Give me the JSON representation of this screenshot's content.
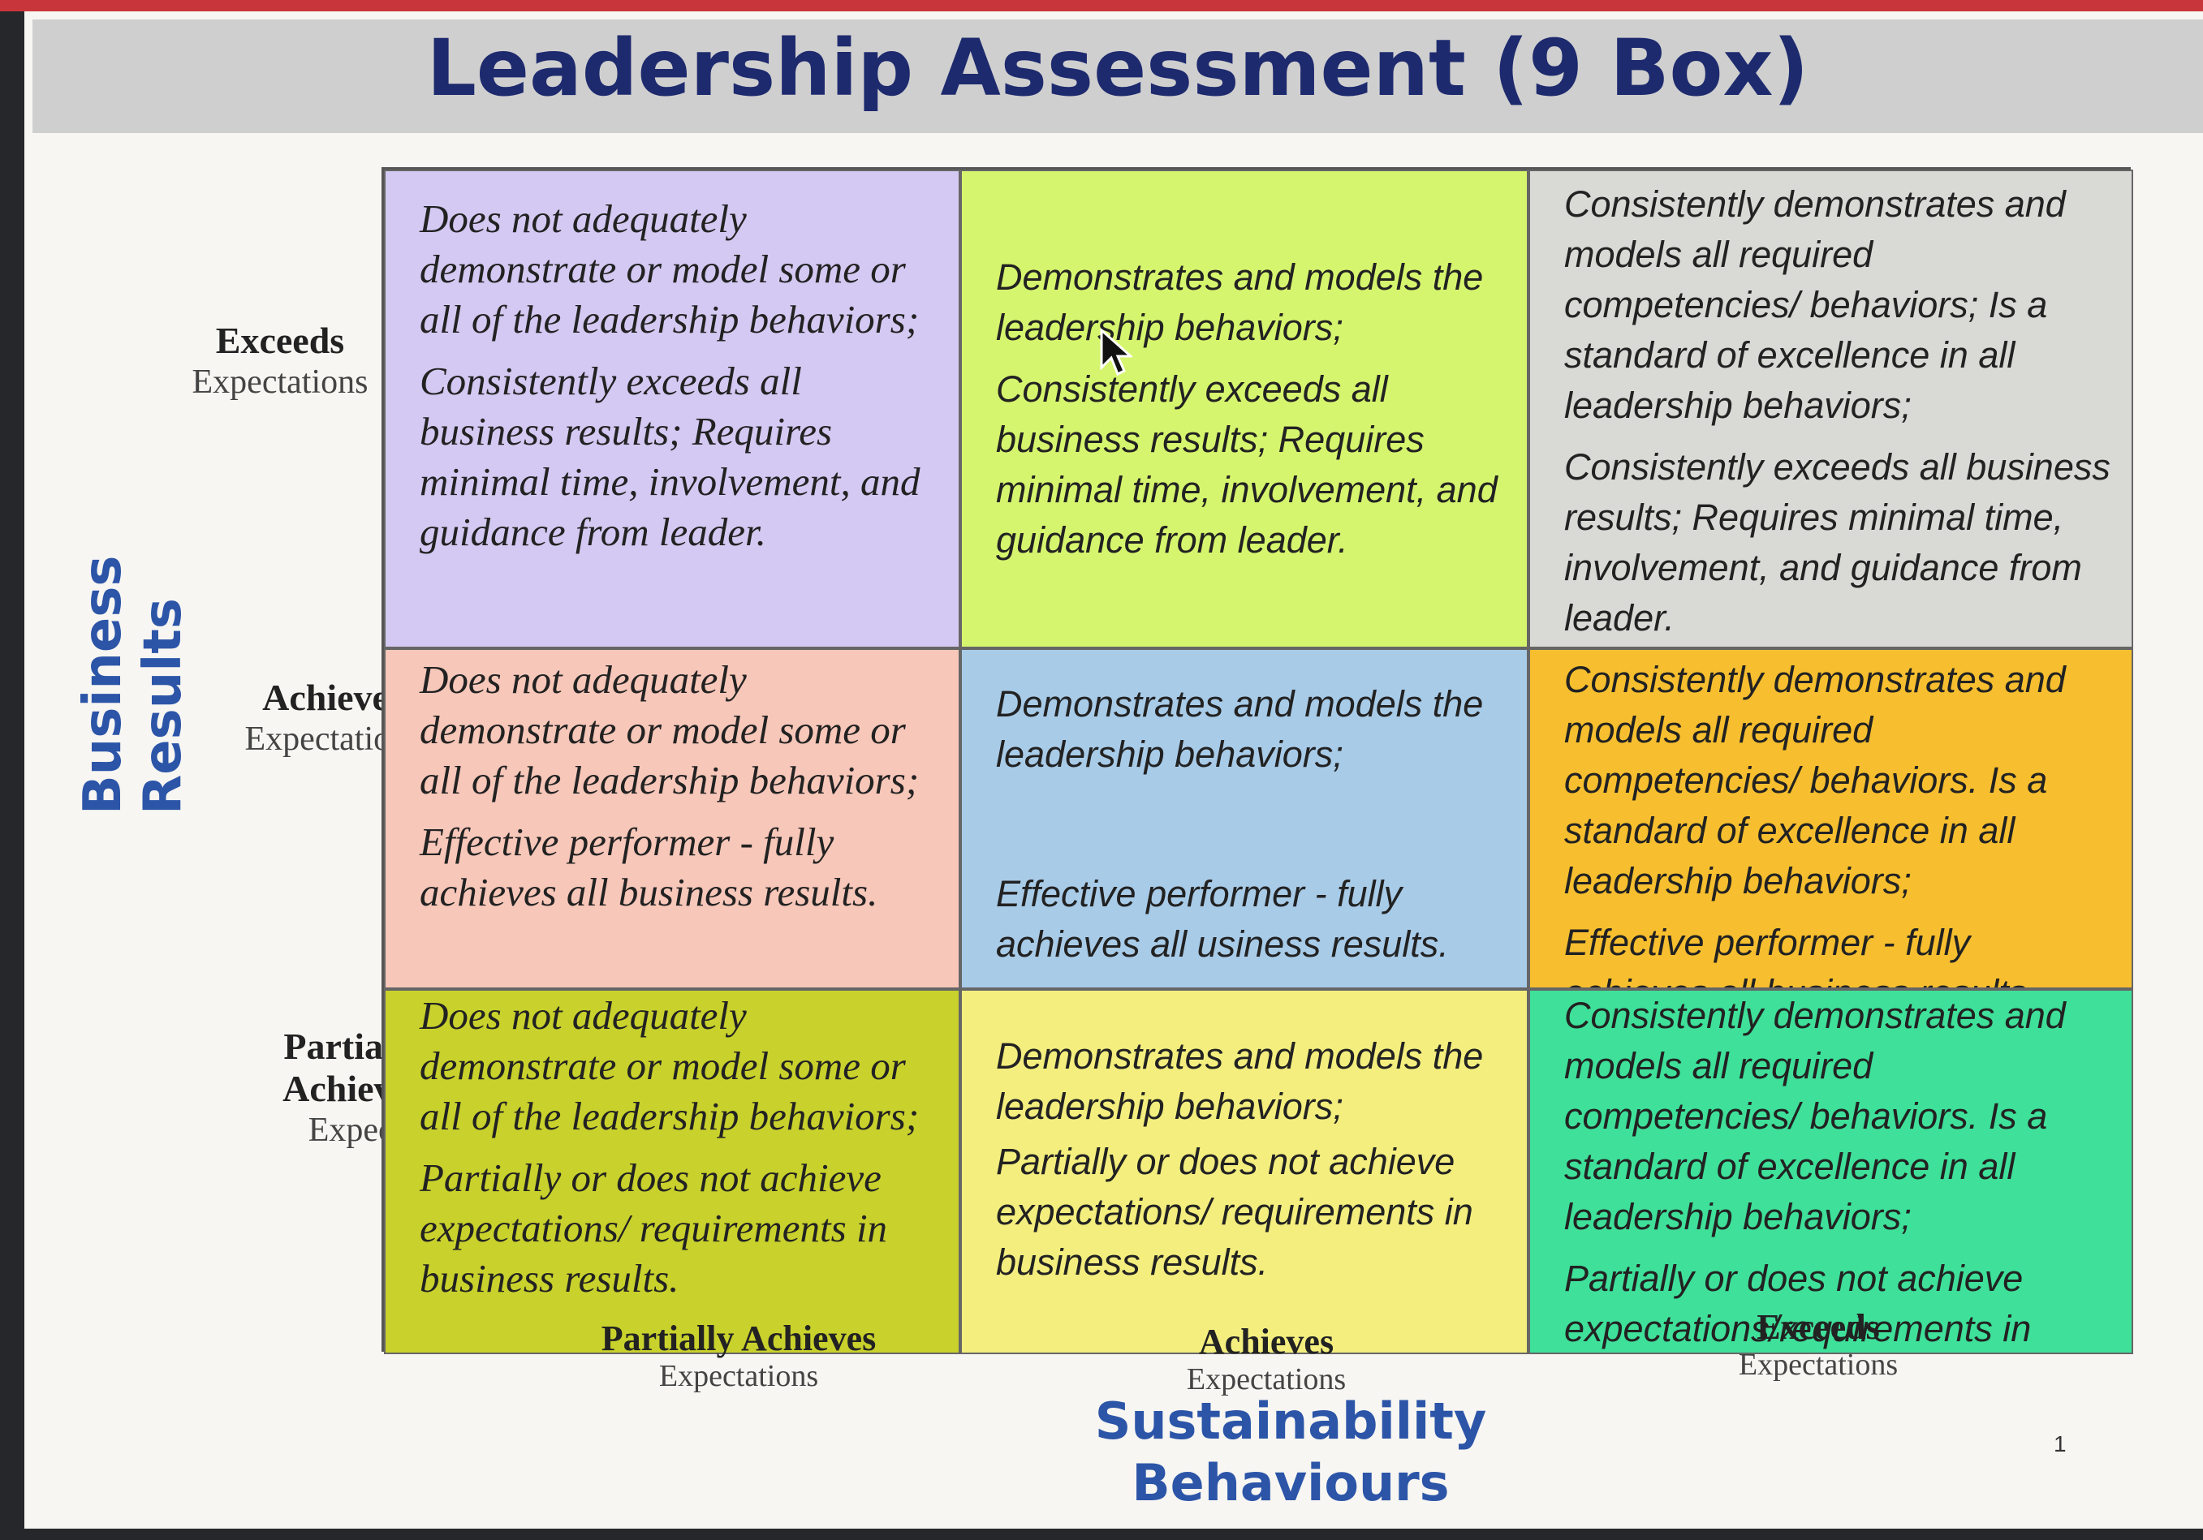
{
  "slide": {
    "title": "Leadership Assessment (9 Box)",
    "page_number": "1"
  },
  "y_axis": {
    "title_line1": "Business",
    "title_line2": "Results",
    "rows": [
      {
        "strong": "Exceeds",
        "light": "Expectations"
      },
      {
        "strong": "Achieves",
        "light": "Expectations"
      },
      {
        "strong": "Partially Achieves",
        "light": "Expectation s"
      }
    ]
  },
  "x_axis": {
    "title_line1": "Sustainability",
    "title_line2": "Behaviours",
    "columns": [
      {
        "strong": "Partially Achieves",
        "light": "Expectations"
      },
      {
        "strong": "Achieves",
        "light": "Expectations"
      },
      {
        "strong": "Exceeds",
        "light": "Expectations"
      }
    ]
  },
  "grid": {
    "r1c1": {
      "behaviour": "Does not adequately demonstrate or model some or all of the leadership behaviors;",
      "results": "Consistently exceeds all business results; Requires minimal time, involvement, and guidance from leader."
    },
    "r1c2": {
      "behaviour": "Demonstrates and models the leadership behaviors;",
      "results": "Consistently exceeds all business results; Requires minimal time, involvement, and guidance from leader."
    },
    "r1c3": {
      "behaviour": "Consistently demonstrates and models all required competencies/ behaviors; Is a standard of excellence in all leadership behaviors;",
      "results": "Consistently exceeds all business results; Requires minimal time, involvement, and guidance from leader."
    },
    "r2c1": {
      "behaviour": "Does not adequately demonstrate or model some or all of the leadership behaviors;",
      "results": "Effective performer - fully achieves all business results."
    },
    "r2c2": {
      "behaviour": "Demonstrates and models the leadership behaviors;",
      "results": "Effective performer - fully achieves all usiness results."
    },
    "r2c3": {
      "behaviour": "Consistently demonstrates and models all required competencies/ behaviors. Is a standard of excellence in all leadership behaviors;",
      "results": "Effective performer - fully achieves all business results."
    },
    "r3c1": {
      "behaviour": "Does not adequately demonstrate or model some or all of the leadership behaviors;",
      "results": "Partially or does not achieve expectations/ requirements in business results."
    },
    "r3c2": {
      "behaviour": "Demonstrates and models the leadership behaviors;",
      "results": "Partially or does not achieve expectations/ requirements in business results."
    },
    "r3c3": {
      "behaviour": "Consistently demonstrates and models all required competencies/ behaviors. Is a standard of excellence in all leadership behaviors;",
      "results": "Partially or does not achieve expectations/requirements in business results."
    }
  },
  "colors": {
    "r1c1": "#d4c9f2",
    "r1c2": "#d6f56e",
    "r1c3": "#d9d9d6",
    "r2c1": "#f7c7b9",
    "r2c2": "#a8cbe8",
    "r2c3": "#f7bf2f",
    "r3c1": "#c9d12c",
    "r3c2": "#f3ee7e",
    "r3c3": "#3fe09a",
    "title": "#1e2a6e",
    "axis_title": "#2c55a8"
  },
  "icons": {
    "cursor": "mouse-pointer-arrow"
  }
}
